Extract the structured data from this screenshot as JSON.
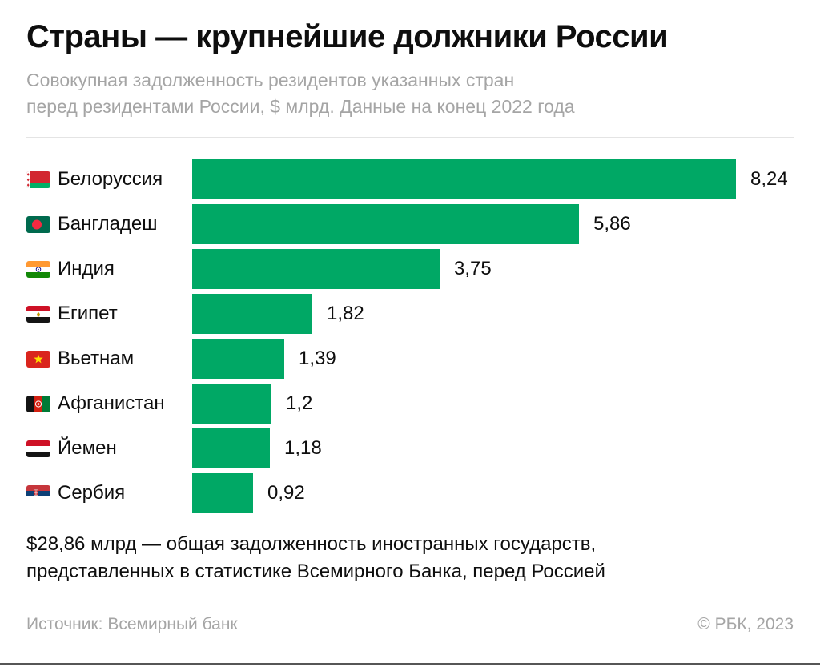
{
  "header": {
    "title": "Страны — крупнейшие должники России",
    "subtitle_line1": "Совокупная задолженность резидентов указанных стран",
    "subtitle_line2": "перед резидентами России, $ млрд. Данные на конец 2022 года"
  },
  "chart_data": {
    "type": "bar",
    "orientation": "horizontal",
    "title": "Страны — крупнейшие должники России",
    "unit": "$ млрд",
    "as_of": "конец 2022 года",
    "categories": [
      "Белоруссия",
      "Бангладеш",
      "Индия",
      "Египет",
      "Вьетнам",
      "Афганистан",
      "Йемен",
      "Сербия"
    ],
    "values": [
      8.24,
      5.86,
      3.75,
      1.82,
      1.39,
      1.2,
      1.18,
      0.92
    ],
    "value_labels": [
      "8,24",
      "5,86",
      "3,75",
      "1,82",
      "1,39",
      "1,2",
      "1,18",
      "0,92"
    ],
    "flag_icons": [
      "belarus-flag-icon",
      "bangladesh-flag-icon",
      "india-flag-icon",
      "egypt-flag-icon",
      "vietnam-flag-icon",
      "afghanistan-flag-icon",
      "yemen-flag-icon",
      "serbia-flag-icon"
    ],
    "max_value": 8.24,
    "bar_color": "#00a865",
    "grid": false,
    "legend": false
  },
  "footer": {
    "note_line1": "$28,86 млрд — общая задолженность иностранных государств,",
    "note_line2": "представленных в статистике Всемирного Банка, перед Россией",
    "source": "Источник: Всемирный банк",
    "copyright": "© РБК, 2023"
  },
  "colors": {
    "bar": "#00a865",
    "text": "#0e0e0e",
    "muted_text": "#a5a5a5",
    "divider": "#e4e4e4",
    "bottom_line": "#565656"
  }
}
